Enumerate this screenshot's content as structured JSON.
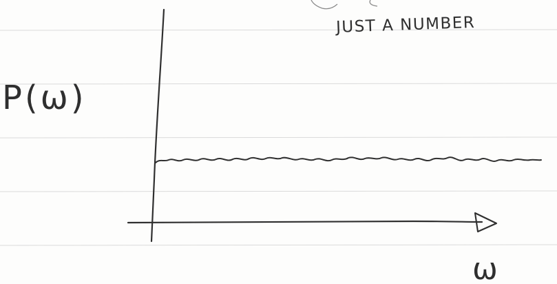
{
  "note": {
    "top_annotation": "JUST A NUMBER",
    "y_axis_label": "P(ω)",
    "x_axis_label": "ω"
  },
  "colors": {
    "paper": "#fdfdfc",
    "rule_line": "#dadada",
    "ink": "#2f2f2f"
  },
  "icons": {
    "arrowhead": "right-triangle-arrow"
  }
}
